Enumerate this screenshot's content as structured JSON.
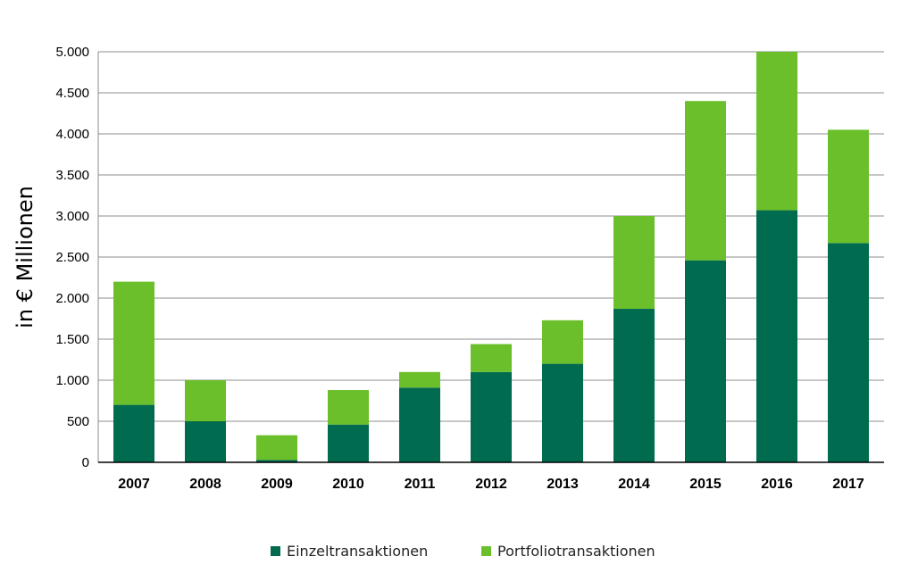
{
  "chart_data": {
    "type": "bar",
    "stacked": true,
    "categories": [
      "2007",
      "2008",
      "2009",
      "2010",
      "2011",
      "2012",
      "2013",
      "2014",
      "2015",
      "2016",
      "2017"
    ],
    "series": [
      {
        "name": "Einzeltransaktionen",
        "color": "#006b4e",
        "values": [
          700,
          500,
          30,
          460,
          910,
          1100,
          1200,
          1870,
          2460,
          3070,
          2670
        ]
      },
      {
        "name": "Portfoliotransaktionen",
        "color": "#6abf2a",
        "values": [
          1500,
          500,
          300,
          420,
          190,
          340,
          530,
          1130,
          1940,
          1930,
          1380
        ]
      }
    ],
    "ylabel": "in € Millionen",
    "xlabel": "",
    "ylim": [
      0,
      5000
    ],
    "yticks": [
      {
        "value": 0,
        "label": "0"
      },
      {
        "value": 500,
        "label": "500"
      },
      {
        "value": 1000,
        "label": "1.000"
      },
      {
        "value": 1500,
        "label": "1.500"
      },
      {
        "value": 2000,
        "label": "2.000"
      },
      {
        "value": 2500,
        "label": "2.500"
      },
      {
        "value": 3000,
        "label": "3.000"
      },
      {
        "value": 3500,
        "label": "3.500"
      },
      {
        "value": 4000,
        "label": "4.000"
      },
      {
        "value": 4500,
        "label": "4.500"
      },
      {
        "value": 5000,
        "label": "5.000"
      }
    ],
    "grid": true,
    "legend_position": "bottom"
  }
}
